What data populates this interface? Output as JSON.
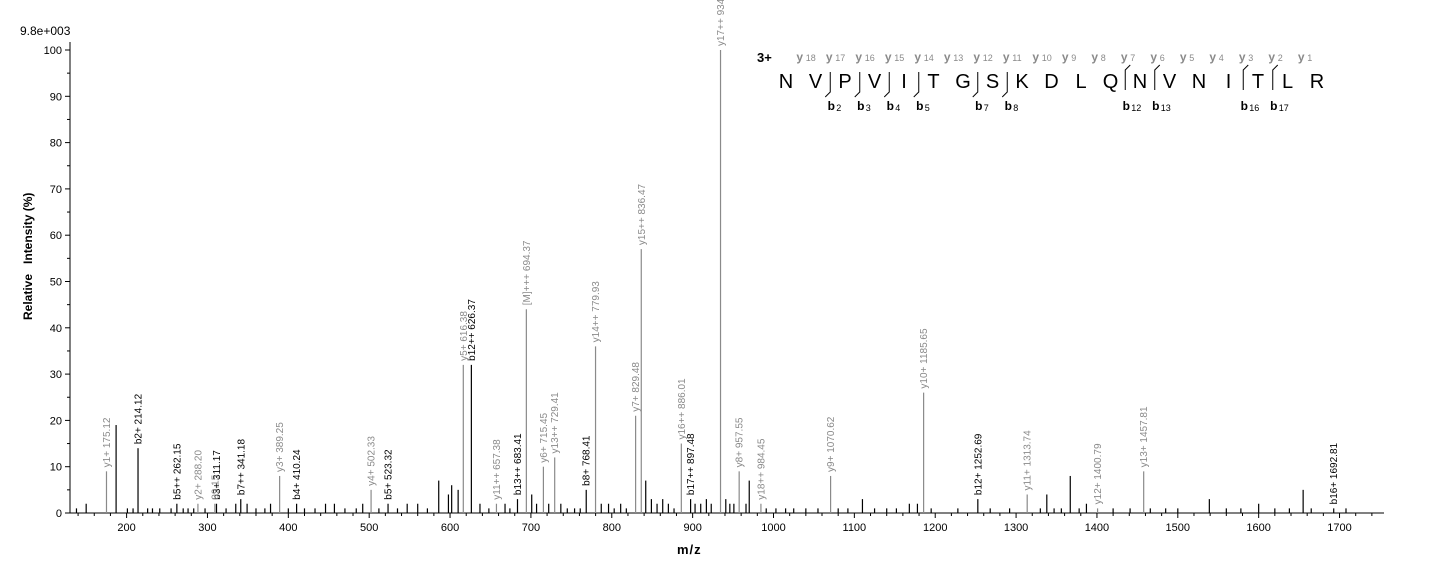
{
  "chart_data": {
    "type": "bar",
    "title": "",
    "max_label": "9.8e+003",
    "xlabel": "m/z",
    "ylabel": "Relative   Intensity (%)",
    "xlim": [
      130,
      1755
    ],
    "ylim": [
      0,
      100
    ],
    "x_ticks": [
      200,
      300,
      400,
      500,
      600,
      700,
      800,
      900,
      1000,
      1100,
      1200,
      1300,
      1400,
      1500,
      1600,
      1700
    ],
    "y_ticks": [
      0,
      10,
      20,
      30,
      40,
      50,
      60,
      70,
      80,
      90,
      100
    ],
    "colors": {
      "b_ion": "#000000",
      "y_ion": "#8a8a8a",
      "noise": "#000000"
    },
    "series": [
      {
        "name": "b",
        "points": [
          {
            "x": 214.12,
            "y": 14,
            "label": "b2+ 214.12"
          },
          {
            "x": 262.15,
            "y": 2,
            "label": "b5++ 262.15"
          },
          {
            "x": 311.17,
            "y": 2,
            "label": "b3+ 311.17"
          },
          {
            "x": 341.18,
            "y": 3,
            "label": "b7++ 341.18"
          },
          {
            "x": 410.24,
            "y": 2,
            "label": "b4+ 410.24"
          },
          {
            "x": 523.32,
            "y": 2,
            "label": "b5+ 523.32"
          },
          {
            "x": 626.37,
            "y": 32,
            "label": "b12++ 626.37"
          },
          {
            "x": 683.41,
            "y": 3,
            "label": "b13++ 683.41"
          },
          {
            "x": 768.41,
            "y": 5,
            "label": "b8+ 768.41"
          },
          {
            "x": 897.48,
            "y": 3,
            "label": "b17++ 897.48"
          },
          {
            "x": 1252.69,
            "y": 3,
            "label": "b12+ 1252.69"
          },
          {
            "x": 1692.81,
            "y": 1,
            "label": "b16+ 1692.81"
          }
        ]
      },
      {
        "name": "y",
        "points": [
          {
            "x": 175.12,
            "y": 9,
            "label": "y1+ 175.12"
          },
          {
            "x": 288.2,
            "y": 2,
            "label": "y2+ 288.20"
          },
          {
            "x": 309.15,
            "y": 2,
            "label": "09.15"
          },
          {
            "x": 389.25,
            "y": 8,
            "label": "y3+ 389.25"
          },
          {
            "x": 502.33,
            "y": 5,
            "label": "y4+ 502.33"
          },
          {
            "x": 616.38,
            "y": 32,
            "label": "y5+ 616.38"
          },
          {
            "x": 657.38,
            "y": 2,
            "label": "y11++ 657.38"
          },
          {
            "x": 694.37,
            "y": 44,
            "label": "[M]+++ 694.37"
          },
          {
            "x": 715.45,
            "y": 10,
            "label": "y6+ 715.45"
          },
          {
            "x": 729.41,
            "y": 12,
            "label": "y13++ 729.41"
          },
          {
            "x": 779.93,
            "y": 36,
            "label": "y14++ 779.93"
          },
          {
            "x": 829.48,
            "y": 21,
            "label": "y7+ 829.48"
          },
          {
            "x": 836.47,
            "y": 57,
            "label": "y15++ 836.47"
          },
          {
            "x": 886.01,
            "y": 15,
            "label": "y16++ 886.01"
          },
          {
            "x": 934.5,
            "y": 100,
            "label": "y17++ 934.5("
          },
          {
            "x": 957.55,
            "y": 9,
            "label": "y8+ 957.55"
          },
          {
            "x": 984.45,
            "y": 2,
            "label": "y18++ 984.45"
          },
          {
            "x": 1070.62,
            "y": 8,
            "label": "y9+ 1070.62"
          },
          {
            "x": 1185.65,
            "y": 26,
            "label": "y10+ 1185.65"
          },
          {
            "x": 1313.74,
            "y": 4,
            "label": "y11+ 1313.74"
          },
          {
            "x": 1400.79,
            "y": 1,
            "label": "y12+ 1400.79"
          },
          {
            "x": 1457.81,
            "y": 9,
            "label": "y13+ 1457.81"
          }
        ]
      },
      {
        "name": "",
        "points": [
          {
            "x": 138,
            "y": 1
          },
          {
            "x": 150,
            "y": 2
          },
          {
            "x": 187,
            "y": 19
          },
          {
            "x": 201,
            "y": 1
          },
          {
            "x": 208,
            "y": 1
          },
          {
            "x": 226,
            "y": 1
          },
          {
            "x": 232,
            "y": 1
          },
          {
            "x": 241,
            "y": 1
          },
          {
            "x": 255,
            "y": 1
          },
          {
            "x": 270,
            "y": 1
          },
          {
            "x": 276,
            "y": 1
          },
          {
            "x": 283,
            "y": 1
          },
          {
            "x": 297,
            "y": 1
          },
          {
            "x": 323,
            "y": 1
          },
          {
            "x": 335,
            "y": 2
          },
          {
            "x": 349,
            "y": 2
          },
          {
            "x": 360,
            "y": 1
          },
          {
            "x": 371,
            "y": 1
          },
          {
            "x": 378,
            "y": 2
          },
          {
            "x": 400,
            "y": 1
          },
          {
            "x": 420,
            "y": 1
          },
          {
            "x": 433,
            "y": 1
          },
          {
            "x": 446,
            "y": 2
          },
          {
            "x": 457,
            "y": 2
          },
          {
            "x": 470,
            "y": 1
          },
          {
            "x": 484,
            "y": 1
          },
          {
            "x": 492,
            "y": 2
          },
          {
            "x": 512,
            "y": 1
          },
          {
            "x": 535,
            "y": 1
          },
          {
            "x": 547,
            "y": 2
          },
          {
            "x": 560,
            "y": 2
          },
          {
            "x": 572,
            "y": 1
          },
          {
            "x": 586,
            "y": 7
          },
          {
            "x": 598,
            "y": 4
          },
          {
            "x": 602,
            "y": 6
          },
          {
            "x": 610,
            "y": 5
          },
          {
            "x": 637,
            "y": 2
          },
          {
            "x": 648,
            "y": 1
          },
          {
            "x": 668,
            "y": 2
          },
          {
            "x": 674,
            "y": 1
          },
          {
            "x": 701,
            "y": 4
          },
          {
            "x": 707,
            "y": 2
          },
          {
            "x": 722,
            "y": 2
          },
          {
            "x": 737,
            "y": 2
          },
          {
            "x": 745,
            "y": 1
          },
          {
            "x": 754,
            "y": 1
          },
          {
            "x": 761,
            "y": 1
          },
          {
            "x": 787,
            "y": 2
          },
          {
            "x": 796,
            "y": 2
          },
          {
            "x": 803,
            "y": 1
          },
          {
            "x": 811,
            "y": 2
          },
          {
            "x": 818,
            "y": 1
          },
          {
            "x": 842,
            "y": 7
          },
          {
            "x": 849,
            "y": 3
          },
          {
            "x": 856,
            "y": 2
          },
          {
            "x": 863,
            "y": 3
          },
          {
            "x": 870,
            "y": 2
          },
          {
            "x": 877,
            "y": 1
          },
          {
            "x": 903,
            "y": 2
          },
          {
            "x": 910,
            "y": 2
          },
          {
            "x": 917,
            "y": 3
          },
          {
            "x": 923,
            "y": 2
          },
          {
            "x": 941,
            "y": 3
          },
          {
            "x": 946,
            "y": 2
          },
          {
            "x": 951,
            "y": 2
          },
          {
            "x": 966,
            "y": 2
          },
          {
            "x": 970,
            "y": 7
          },
          {
            "x": 991,
            "y": 1
          },
          {
            "x": 1003,
            "y": 1
          },
          {
            "x": 1015,
            "y": 1
          },
          {
            "x": 1025,
            "y": 1
          },
          {
            "x": 1040,
            "y": 1
          },
          {
            "x": 1055,
            "y": 1
          },
          {
            "x": 1080,
            "y": 1
          },
          {
            "x": 1092,
            "y": 1
          },
          {
            "x": 1110,
            "y": 3
          },
          {
            "x": 1125,
            "y": 1
          },
          {
            "x": 1140,
            "y": 1
          },
          {
            "x": 1152,
            "y": 1
          },
          {
            "x": 1168,
            "y": 2
          },
          {
            "x": 1178,
            "y": 2
          },
          {
            "x": 1195,
            "y": 1
          },
          {
            "x": 1228,
            "y": 1
          },
          {
            "x": 1268,
            "y": 1
          },
          {
            "x": 1292,
            "y": 1
          },
          {
            "x": 1330,
            "y": 1
          },
          {
            "x": 1338,
            "y": 4
          },
          {
            "x": 1347,
            "y": 1
          },
          {
            "x": 1356,
            "y": 1
          },
          {
            "x": 1367,
            "y": 8
          },
          {
            "x": 1378,
            "y": 1
          },
          {
            "x": 1387,
            "y": 2
          },
          {
            "x": 1420,
            "y": 1
          },
          {
            "x": 1441,
            "y": 1
          },
          {
            "x": 1466,
            "y": 1
          },
          {
            "x": 1485,
            "y": 1
          },
          {
            "x": 1500,
            "y": 1
          },
          {
            "x": 1539,
            "y": 3
          },
          {
            "x": 1560,
            "y": 1
          },
          {
            "x": 1578,
            "y": 1
          },
          {
            "x": 1600,
            "y": 2
          },
          {
            "x": 1620,
            "y": 1
          },
          {
            "x": 1638,
            "y": 1
          },
          {
            "x": 1655,
            "y": 5
          },
          {
            "x": 1665,
            "y": 1
          },
          {
            "x": 1708,
            "y": 1
          }
        ]
      }
    ],
    "peptide": {
      "charge_label": "3+",
      "sequence": [
        "N",
        "V",
        "P",
        "V",
        "I",
        "T",
        "G",
        "S",
        "K",
        "D",
        "L",
        "Q",
        "N",
        "V",
        "N",
        "I",
        "T",
        "L",
        "R"
      ],
      "y_labels": [
        {
          "gap": 1,
          "ion": "y",
          "num": "18"
        },
        {
          "gap": 2,
          "ion": "y",
          "num": "17"
        },
        {
          "gap": 3,
          "ion": "y",
          "num": "16"
        },
        {
          "gap": 4,
          "ion": "y",
          "num": "15"
        },
        {
          "gap": 5,
          "ion": "y",
          "num": "14"
        },
        {
          "gap": 6,
          "ion": "y",
          "num": "13"
        },
        {
          "gap": 7,
          "ion": "y",
          "num": "12"
        },
        {
          "gap": 8,
          "ion": "y",
          "num": "11"
        },
        {
          "gap": 9,
          "ion": "y",
          "num": "10"
        },
        {
          "gap": 10,
          "ion": "y",
          "num": "9"
        },
        {
          "gap": 11,
          "ion": "y",
          "num": "8"
        },
        {
          "gap": 12,
          "ion": "y",
          "num": "7"
        },
        {
          "gap": 13,
          "ion": "y",
          "num": "6"
        },
        {
          "gap": 14,
          "ion": "y",
          "num": "5"
        },
        {
          "gap": 15,
          "ion": "y",
          "num": "4"
        },
        {
          "gap": 16,
          "ion": "y",
          "num": "3"
        },
        {
          "gap": 17,
          "ion": "y",
          "num": "2"
        },
        {
          "gap": 18,
          "ion": "y",
          "num": "1"
        }
      ],
      "b_labels": [
        {
          "gap": 2,
          "ion": "b",
          "num": "2"
        },
        {
          "gap": 3,
          "ion": "b",
          "num": "3"
        },
        {
          "gap": 4,
          "ion": "b",
          "num": "4"
        },
        {
          "gap": 5,
          "ion": "b",
          "num": "5"
        },
        {
          "gap": 7,
          "ion": "b",
          "num": "7"
        },
        {
          "gap": 8,
          "ion": "b",
          "num": "8"
        },
        {
          "gap": 12,
          "ion": "b",
          "num": "12"
        },
        {
          "gap": 13,
          "ion": "b",
          "num": "13"
        },
        {
          "gap": 16,
          "ion": "b",
          "num": "16"
        },
        {
          "gap": 17,
          "ion": "b",
          "num": "17"
        }
      ],
      "y_breaks": [
        12,
        13,
        16,
        17
      ],
      "b_breaks": [
        2,
        3,
        4,
        5,
        7,
        8
      ]
    }
  }
}
